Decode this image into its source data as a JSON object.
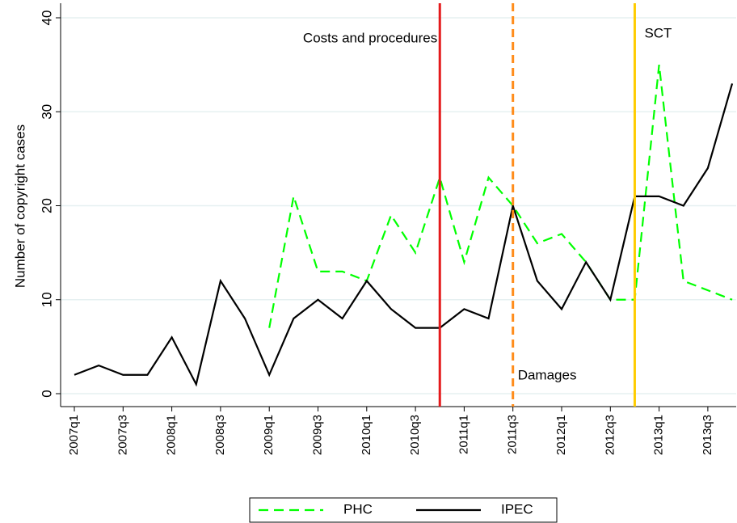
{
  "chart_data": {
    "type": "line",
    "y_label": "Number of copyright cases",
    "categories": [
      "2007q1",
      null,
      "2007q3",
      null,
      "2008q1",
      null,
      "2008q3",
      null,
      "2009q1",
      null,
      "2009q3",
      null,
      "2010q1",
      null,
      "2010q3",
      null,
      "2011q1",
      null,
      "2011q3",
      null,
      "2012q1",
      null,
      "2012q3",
      null,
      "2013q1",
      null,
      "2013q3",
      null
    ],
    "series": [
      {
        "name": "PHC",
        "color": "#00ff00",
        "dash": true,
        "values": [
          null,
          null,
          null,
          null,
          null,
          null,
          null,
          null,
          7,
          21,
          13,
          13,
          12,
          19,
          15,
          23,
          14,
          23,
          20,
          16,
          17,
          14,
          10,
          10,
          35,
          12,
          11,
          10
        ]
      },
      {
        "name": "IPEC",
        "color": "#000000",
        "dash": false,
        "values": [
          2,
          3,
          2,
          2,
          6,
          1,
          12,
          8,
          2,
          8,
          10,
          8,
          12,
          9,
          7,
          7,
          9,
          8,
          20,
          12,
          9,
          14,
          10,
          21,
          21,
          20,
          24,
          33
        ]
      }
    ],
    "vlines": [
      {
        "x": 15,
        "label": "Costs and procedures",
        "color": "#e41a1c",
        "dash": false
      },
      {
        "x": 18,
        "label": "Damages",
        "color": "#ff8c1a",
        "dash": true
      },
      {
        "x": 23,
        "label": "SCT",
        "color": "#ffcc00",
        "dash": false
      }
    ],
    "ylim": [
      0,
      40
    ],
    "yticks": [
      0,
      10,
      20,
      30,
      40
    ],
    "grid": true,
    "legend": "bottom"
  }
}
